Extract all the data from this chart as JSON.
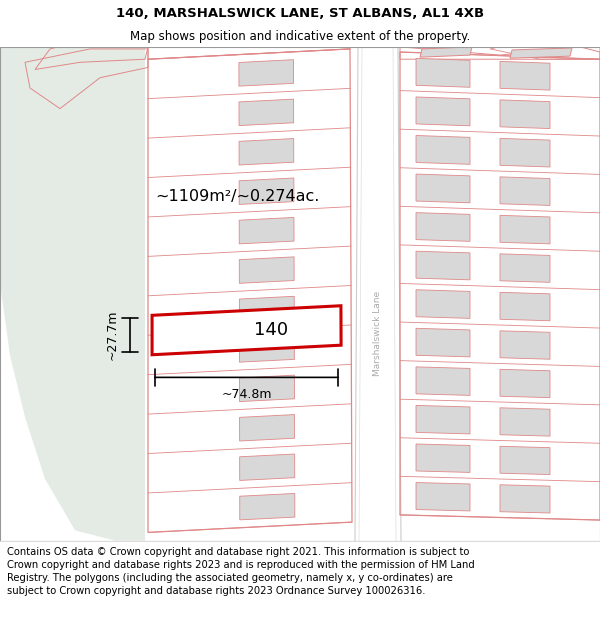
{
  "title_line1": "140, MARSHALSWICK LANE, ST ALBANS, AL1 4XB",
  "title_line2": "Map shows position and indicative extent of the property.",
  "footer_text": "Contains OS data © Crown copyright and database right 2021. This information is subject to Crown copyright and database rights 2023 and is reproduced with the permission of HM Land Registry. The polygons (including the associated geometry, namely x, y co-ordinates) are subject to Crown copyright and database rights 2023 Ordnance Survey 100026316.",
  "area_label": "~1109m²/~0.274ac.",
  "number_label": "140",
  "width_label": "~74.8m",
  "height_label": "~27.7m",
  "road_label": "Marshalswick Lane",
  "bg_color": "#ffffff",
  "map_bg": "#f7f6f2",
  "green_area_color": "#e4ebe4",
  "road_fill": "#ffffff",
  "plot_outline_color": "#cc0000",
  "building_fill": "#d8d8d8",
  "building_outline": "#e08888",
  "parcel_line_color": "#e08888",
  "title_fontsize": 9.5,
  "subtitle_fontsize": 8.5,
  "footer_fontsize": 7.2
}
